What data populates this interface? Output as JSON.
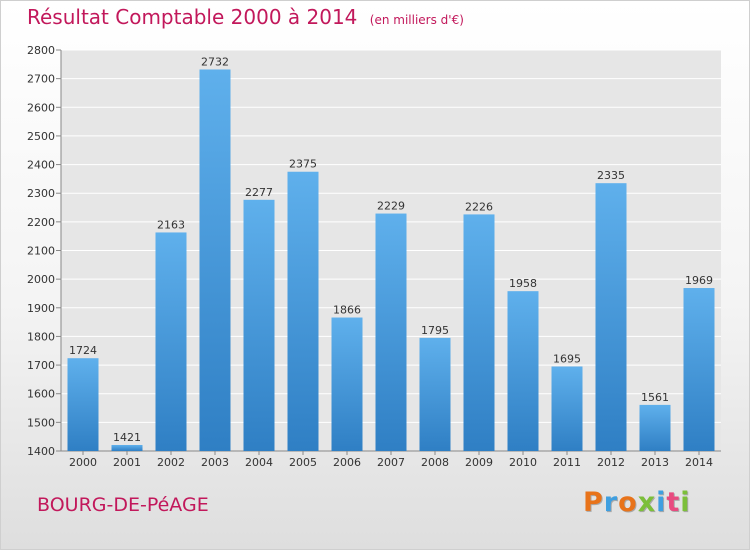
{
  "header": {
    "title": "Résultat Comptable 2000 à 2014",
    "subtitle": "(en milliers d'€)"
  },
  "footer": {
    "location": "BOURG-DE-PéAGE",
    "logo_text": "Proxiti",
    "logo_colors": [
      "#e8731a",
      "#3f9fe0",
      "#e8731a",
      "#7cbf3a",
      "#3f9fe0",
      "#e84a7f",
      "#7cbf3a"
    ]
  },
  "colors": {
    "bar_top": "#5fb0ec",
    "bar_bottom": "#2f7fc4",
    "accent": "#c2185b"
  },
  "chart_data": {
    "type": "bar",
    "categories": [
      "2000",
      "2001",
      "2002",
      "2003",
      "2004",
      "2005",
      "2006",
      "2007",
      "2008",
      "2009",
      "2010",
      "2011",
      "2012",
      "2013",
      "2014"
    ],
    "values": [
      1724,
      1421,
      2163,
      2732,
      2277,
      2375,
      1866,
      2229,
      1795,
      2226,
      1958,
      1695,
      2335,
      1561,
      1969
    ],
    "title": "Résultat Comptable 2000 à 2014",
    "subtitle": "(en milliers d'€)",
    "xlabel": "",
    "ylabel": "",
    "ylim": [
      1400,
      2800
    ],
    "yticks": [
      1400,
      1500,
      1600,
      1700,
      1800,
      1900,
      2000,
      2100,
      2200,
      2300,
      2400,
      2500,
      2600,
      2700,
      2800
    ],
    "grid": true,
    "legend": "none"
  }
}
